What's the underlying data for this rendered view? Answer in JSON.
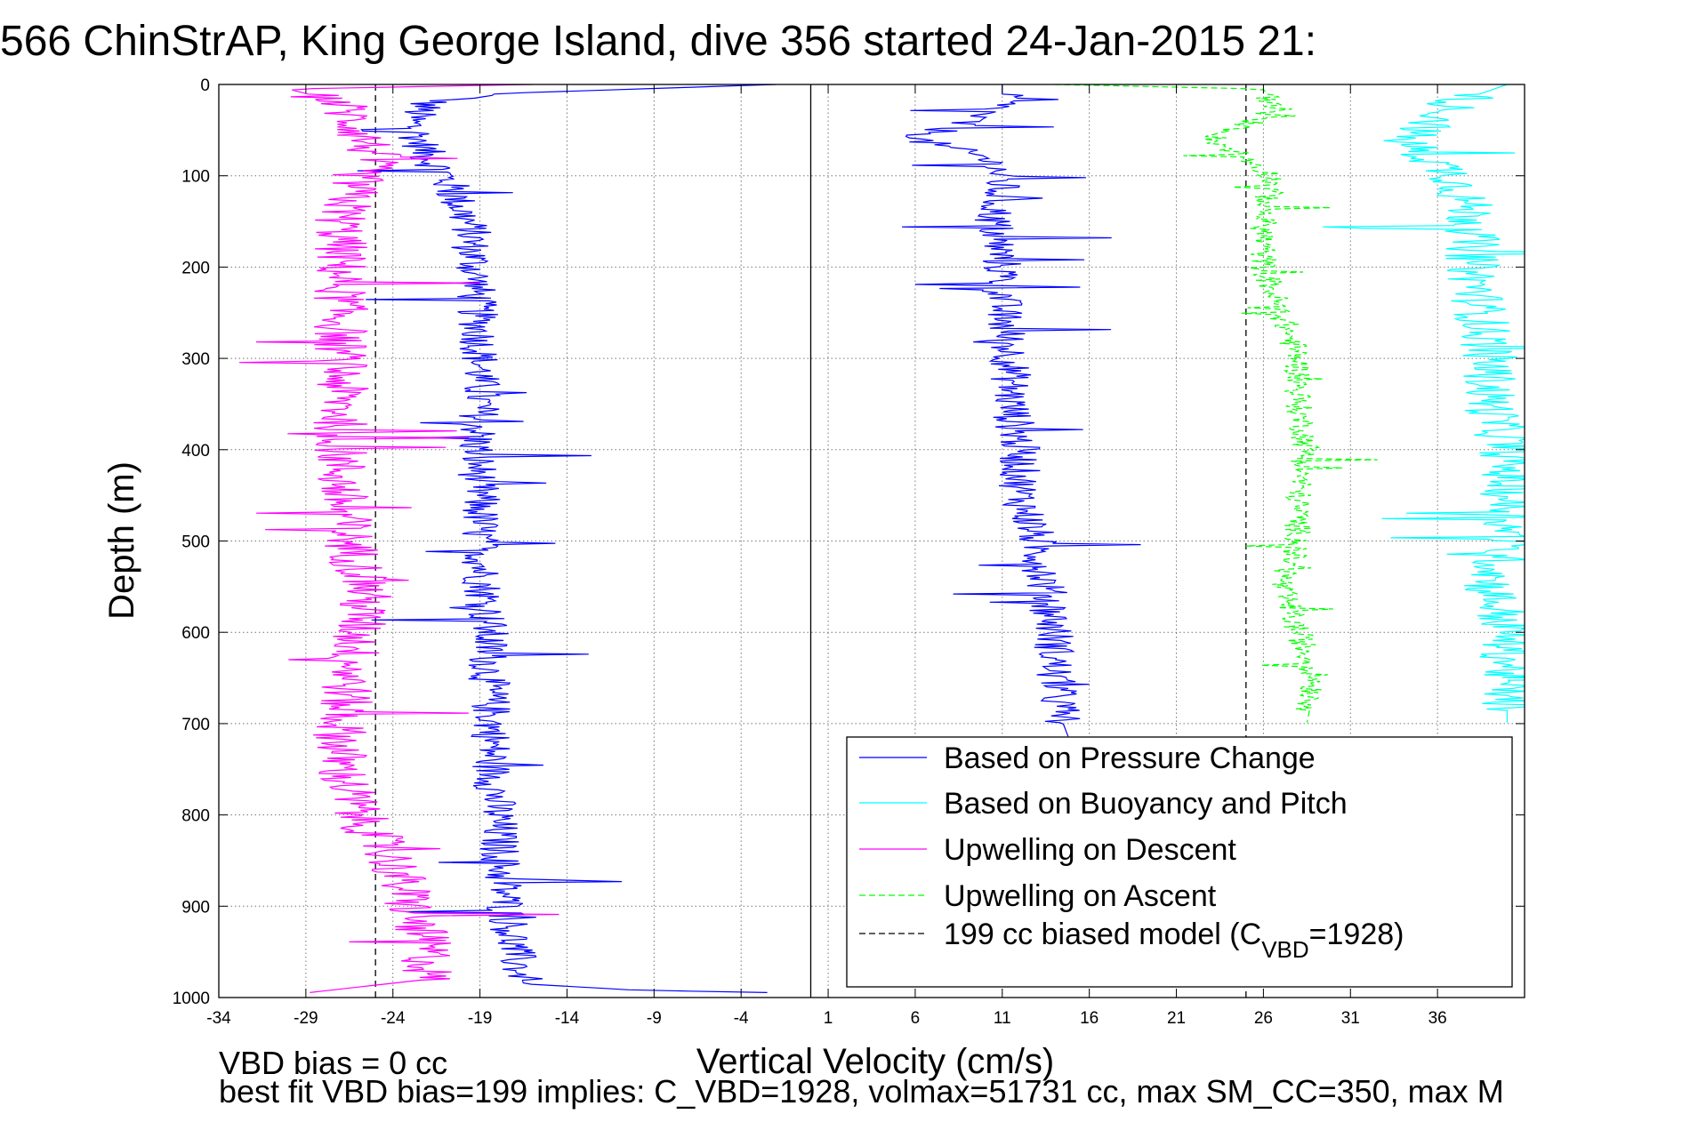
{
  "chart_data": {
    "type": "line",
    "title": "566 ChinStrAP, King George Island, dive 356 started 24-Jan-2015 21:",
    "xlabel": "Vertical Velocity (cm/s)",
    "ylabel": "Depth (m)",
    "xlim": [
      -34,
      41
    ],
    "ylim": [
      1000,
      0
    ],
    "y_reversed": true,
    "grid": true,
    "xticks": [
      "-34",
      "-29",
      "-24",
      "-19",
      "-14",
      "-9",
      "-4",
      "1",
      "6",
      "11",
      "16",
      "21",
      "26",
      "31",
      "36"
    ],
    "yticks": [
      "0",
      "100",
      "200",
      "300",
      "400",
      "500",
      "600",
      "700",
      "800",
      "900",
      "1000"
    ],
    "zero_line_x": 0,
    "legend": {
      "placement": "lower-right",
      "entries": [
        {
          "label": "Based on Pressure Change",
          "color": "#0000ff",
          "dash": "solid"
        },
        {
          "label": "Based on Buoyancy and Pitch",
          "color": "#00ffff",
          "dash": "solid"
        },
        {
          "label": "Upwelling on Descent",
          "color": "#ff00ff",
          "dash": "solid"
        },
        {
          "label": "Upwelling on Ascent",
          "color": "#00ff00",
          "dash": "dashed"
        },
        {
          "label_prefix": "199 cc biased model (C",
          "label_sub": "VBD",
          "label_suffix": "=1928)",
          "color": "#000000",
          "dash": "dashed"
        }
      ]
    },
    "bias_model_x": [
      -25,
      25
    ],
    "series": [
      {
        "name": "Based on Pressure Change",
        "color": "#0000ff",
        "dash": "solid",
        "side": "descent",
        "points": [
          [
            -2,
            0
          ],
          [
            -18,
            10
          ],
          [
            -22,
            20
          ],
          [
            -23,
            40
          ],
          [
            -22.5,
            60
          ],
          [
            -22,
            80
          ],
          [
            -21,
            100
          ],
          [
            -20.5,
            120
          ],
          [
            -20,
            140
          ],
          [
            -19.5,
            160
          ],
          [
            -19.5,
            180
          ],
          [
            -19.3,
            200
          ],
          [
            -19.2,
            240
          ],
          [
            -19,
            280
          ],
          [
            -19,
            320
          ],
          [
            -19,
            360
          ],
          [
            -19.2,
            400
          ],
          [
            -19,
            450
          ],
          [
            -19,
            500
          ],
          [
            -18.8,
            550
          ],
          [
            -18.5,
            600
          ],
          [
            -18.5,
            650
          ],
          [
            -18.3,
            700
          ],
          [
            -18.3,
            750
          ],
          [
            -18,
            800
          ],
          [
            -17.8,
            850
          ],
          [
            -17.5,
            900
          ],
          [
            -17,
            950
          ],
          [
            -16.5,
            985
          ],
          [
            -10,
            992
          ],
          [
            -1,
            995
          ]
        ]
      },
      {
        "name": "Based on Pressure Change",
        "color": "#0000ff",
        "dash": "solid",
        "side": "ascent",
        "points": [
          [
            11,
            0
          ],
          [
            11,
            20
          ],
          [
            9,
            40
          ],
          [
            6,
            60
          ],
          [
            8,
            70
          ],
          [
            10,
            80
          ],
          [
            11,
            100
          ],
          [
            10.5,
            150
          ],
          [
            11,
            200
          ],
          [
            11,
            250
          ],
          [
            11.5,
            300
          ],
          [
            11.5,
            350
          ],
          [
            12,
            400
          ],
          [
            12,
            450
          ],
          [
            13,
            500
          ],
          [
            13.5,
            550
          ],
          [
            14,
            600
          ],
          [
            14,
            650
          ],
          [
            14.5,
            700
          ],
          [
            14.8,
            715
          ]
        ]
      },
      {
        "name": "Upwelling on Descent",
        "color": "#ff00ff",
        "dash": "solid",
        "side": "descent",
        "points": [
          [
            -16,
            0
          ],
          [
            -30,
            5
          ],
          [
            -27,
            20
          ],
          [
            -26,
            50
          ],
          [
            -25,
            80
          ],
          [
            -26,
            100
          ],
          [
            -27,
            150
          ],
          [
            -27,
            200
          ],
          [
            -27,
            250
          ],
          [
            -27,
            300
          ],
          [
            -27,
            350
          ],
          [
            -27,
            400
          ],
          [
            -27,
            450
          ],
          [
            -26.5,
            500
          ],
          [
            -25.5,
            550
          ],
          [
            -26,
            600
          ],
          [
            -26.5,
            650
          ],
          [
            -27,
            700
          ],
          [
            -27,
            750
          ],
          [
            -26,
            800
          ],
          [
            -24,
            850
          ],
          [
            -23,
            900
          ],
          [
            -22,
            950
          ],
          [
            -22,
            980
          ],
          [
            -29,
            995
          ]
        ]
      },
      {
        "name": "Based on Buoyancy and Pitch",
        "color": "#00ffff",
        "dash": "solid",
        "side": "ascent",
        "points": [
          [
            40,
            0
          ],
          [
            37,
            20
          ],
          [
            36,
            40
          ],
          [
            34,
            60
          ],
          [
            35.5,
            80
          ],
          [
            37,
            100
          ],
          [
            38,
            150
          ],
          [
            38,
            200
          ],
          [
            38.5,
            250
          ],
          [
            39,
            300
          ],
          [
            39,
            350
          ],
          [
            40,
            400
          ],
          [
            40,
            450
          ],
          [
            40,
            500
          ],
          [
            39,
            550
          ],
          [
            40,
            600
          ],
          [
            40,
            650
          ],
          [
            40,
            700
          ]
        ]
      },
      {
        "name": "Upwelling on Ascent",
        "color": "#00ff00",
        "dash": "dashed",
        "side": "ascent",
        "points": [
          [
            14,
            0
          ],
          [
            26,
            5
          ],
          [
            26.5,
            20
          ],
          [
            25.5,
            40
          ],
          [
            23,
            60
          ],
          [
            25,
            80
          ],
          [
            26.5,
            100
          ],
          [
            26,
            150
          ],
          [
            26,
            200
          ],
          [
            27,
            250
          ],
          [
            28,
            300
          ],
          [
            28,
            350
          ],
          [
            28.5,
            400
          ],
          [
            28,
            450
          ],
          [
            28,
            500
          ],
          [
            27,
            550
          ],
          [
            28,
            600
          ],
          [
            29,
            650
          ],
          [
            28.5,
            700
          ]
        ]
      }
    ]
  },
  "footer": {
    "line1": "VBD bias = 0 cc",
    "line2": "best fit VBD bias=199 implies: C_VBD=1928, volmax=51731 cc, max SM_CC=350, max M"
  }
}
